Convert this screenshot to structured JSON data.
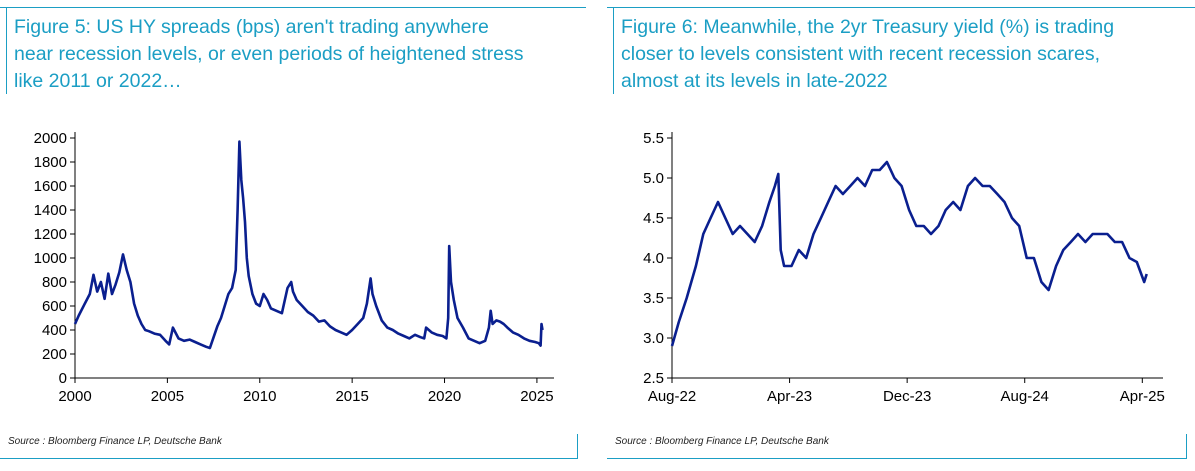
{
  "colors": {
    "accent": "#1b9ec4",
    "series": "#0a1f8f",
    "text": "#000000"
  },
  "figures": [
    {
      "title": "Figure 5: US HY spreads (bps) aren't trading anywhere\nnear recession levels, or even periods of heightened stress\nlike 2011 or 2022…",
      "source": "Source : Bloomberg Finance LP, Deutsche Bank"
    },
    {
      "title": "Figure 6: Meanwhile, the 2yr Treasury yield (%) is trading\ncloser to levels consistent with recent recession scares,\nalmost at its levels in late-2022",
      "source": "Source : Bloomberg Finance LP, Deutsche Bank"
    }
  ],
  "chart_data": [
    {
      "type": "line",
      "title": "",
      "xlabel": "",
      "ylabel": "",
      "xlim": [
        2000,
        2025.6
      ],
      "ylim": [
        0,
        2000
      ],
      "x_ticks": [
        2000,
        2005,
        2010,
        2015,
        2020,
        2025
      ],
      "y_ticks": [
        0,
        200,
        400,
        600,
        800,
        1000,
        1200,
        1400,
        1600,
        1800,
        2000
      ],
      "series": [
        {
          "x": [
            2000.0,
            2000.2,
            2000.5,
            2000.8,
            2001.0,
            2001.2,
            2001.4,
            2001.6,
            2001.8,
            2002.0,
            2002.2,
            2002.4,
            2002.6,
            2002.8,
            2003.0,
            2003.2,
            2003.4,
            2003.6,
            2003.8,
            2004.0,
            2004.3,
            2004.6,
            2004.9,
            2005.1,
            2005.3,
            2005.6,
            2005.9,
            2006.2,
            2006.5,
            2006.8,
            2007.1,
            2007.3,
            2007.5,
            2007.7,
            2007.9,
            2008.1,
            2008.3,
            2008.5,
            2008.7,
            2008.8,
            2008.9,
            2009.0,
            2009.1,
            2009.2,
            2009.3,
            2009.4,
            2009.6,
            2009.8,
            2010.0,
            2010.2,
            2010.4,
            2010.6,
            2010.9,
            2011.2,
            2011.5,
            2011.7,
            2011.8,
            2012.0,
            2012.3,
            2012.6,
            2012.9,
            2013.2,
            2013.5,
            2013.8,
            2014.1,
            2014.4,
            2014.7,
            2015.0,
            2015.3,
            2015.6,
            2015.8,
            2016.0,
            2016.1,
            2016.3,
            2016.6,
            2016.9,
            2017.2,
            2017.5,
            2017.8,
            2018.1,
            2018.4,
            2018.7,
            2018.9,
            2019.0,
            2019.3,
            2019.6,
            2019.9,
            2020.1,
            2020.2,
            2020.25,
            2020.35,
            2020.5,
            2020.7,
            2021.0,
            2021.3,
            2021.6,
            2021.9,
            2022.2,
            2022.4,
            2022.5,
            2022.6,
            2022.8,
            2023.0,
            2023.2,
            2023.4,
            2023.7,
            2024.0,
            2024.3,
            2024.6,
            2024.9,
            2025.1,
            2025.2,
            2025.25,
            2025.3
          ],
          "values": [
            450,
            520,
            610,
            700,
            860,
            720,
            800,
            660,
            870,
            700,
            780,
            880,
            1030,
            900,
            800,
            620,
            520,
            450,
            400,
            390,
            370,
            360,
            310,
            280,
            420,
            330,
            310,
            320,
            300,
            280,
            260,
            250,
            340,
            430,
            500,
            600,
            700,
            750,
            900,
            1400,
            1970,
            1650,
            1500,
            1300,
            1000,
            850,
            700,
            620,
            600,
            700,
            650,
            580,
            560,
            540,
            750,
            800,
            720,
            650,
            600,
            550,
            520,
            470,
            480,
            430,
            400,
            380,
            360,
            400,
            450,
            500,
            620,
            830,
            700,
            600,
            480,
            420,
            400,
            370,
            350,
            330,
            360,
            340,
            330,
            420,
            380,
            360,
            350,
            330,
            500,
            1100,
            800,
            650,
            500,
            420,
            330,
            310,
            290,
            310,
            420,
            560,
            450,
            480,
            470,
            450,
            420,
            380,
            360,
            330,
            310,
            300,
            290,
            270,
            450,
            400
          ]
        }
      ]
    },
    {
      "type": "line",
      "title": "",
      "xlabel": "",
      "ylabel": "",
      "xlim": [
        "2022-08",
        "2025-05"
      ],
      "ylim": [
        2.5,
        5.5
      ],
      "x_ticks": [
        "Aug-22",
        "Apr-23",
        "Dec-23",
        "Aug-24",
        "Apr-25"
      ],
      "y_ticks": [
        "2.5",
        "3.0",
        "3.5",
        "4.0",
        "4.5",
        "5.0",
        "5.5"
      ],
      "series": [
        {
          "x": [
            "2022-08-01",
            "2022-08-15",
            "2022-09-01",
            "2022-09-20",
            "2022-10-05",
            "2022-10-20",
            "2022-11-05",
            "2022-11-20",
            "2022-12-05",
            "2022-12-20",
            "2023-01-05",
            "2023-01-20",
            "2023-02-05",
            "2023-02-20",
            "2023-03-01",
            "2023-03-08",
            "2023-03-13",
            "2023-03-20",
            "2023-04-05",
            "2023-04-20",
            "2023-05-05",
            "2023-05-20",
            "2023-06-05",
            "2023-06-20",
            "2023-07-05",
            "2023-07-20",
            "2023-08-05",
            "2023-08-20",
            "2023-09-05",
            "2023-09-20",
            "2023-10-05",
            "2023-10-20",
            "2023-11-05",
            "2023-11-20",
            "2023-12-05",
            "2023-12-20",
            "2024-01-05",
            "2024-01-20",
            "2024-02-05",
            "2024-02-20",
            "2024-03-05",
            "2024-03-20",
            "2024-04-05",
            "2024-04-20",
            "2024-05-05",
            "2024-05-20",
            "2024-06-05",
            "2024-06-20",
            "2024-07-05",
            "2024-07-20",
            "2024-08-05",
            "2024-08-20",
            "2024-09-05",
            "2024-09-20",
            "2024-10-05",
            "2024-10-20",
            "2024-11-05",
            "2024-11-20",
            "2024-12-05",
            "2024-12-20",
            "2025-01-05",
            "2025-01-20",
            "2025-02-05",
            "2025-02-20",
            "2025-03-05",
            "2025-03-20",
            "2025-04-05",
            "2025-04-10"
          ],
          "values": [
            2.9,
            3.2,
            3.5,
            3.9,
            4.3,
            4.5,
            4.7,
            4.5,
            4.3,
            4.4,
            4.3,
            4.2,
            4.4,
            4.7,
            4.9,
            5.05,
            4.1,
            3.9,
            3.9,
            4.1,
            4.0,
            4.3,
            4.5,
            4.7,
            4.9,
            4.8,
            4.9,
            5.0,
            4.9,
            5.1,
            5.1,
            5.2,
            5.0,
            4.9,
            4.6,
            4.4,
            4.4,
            4.3,
            4.4,
            4.6,
            4.7,
            4.6,
            4.9,
            5.0,
            4.9,
            4.9,
            4.8,
            4.7,
            4.5,
            4.4,
            4.0,
            4.0,
            3.7,
            3.6,
            3.9,
            4.1,
            4.2,
            4.3,
            4.2,
            4.3,
            4.3,
            4.3,
            4.2,
            4.2,
            4.0,
            3.95,
            3.7,
            3.8
          ]
        }
      ]
    }
  ]
}
